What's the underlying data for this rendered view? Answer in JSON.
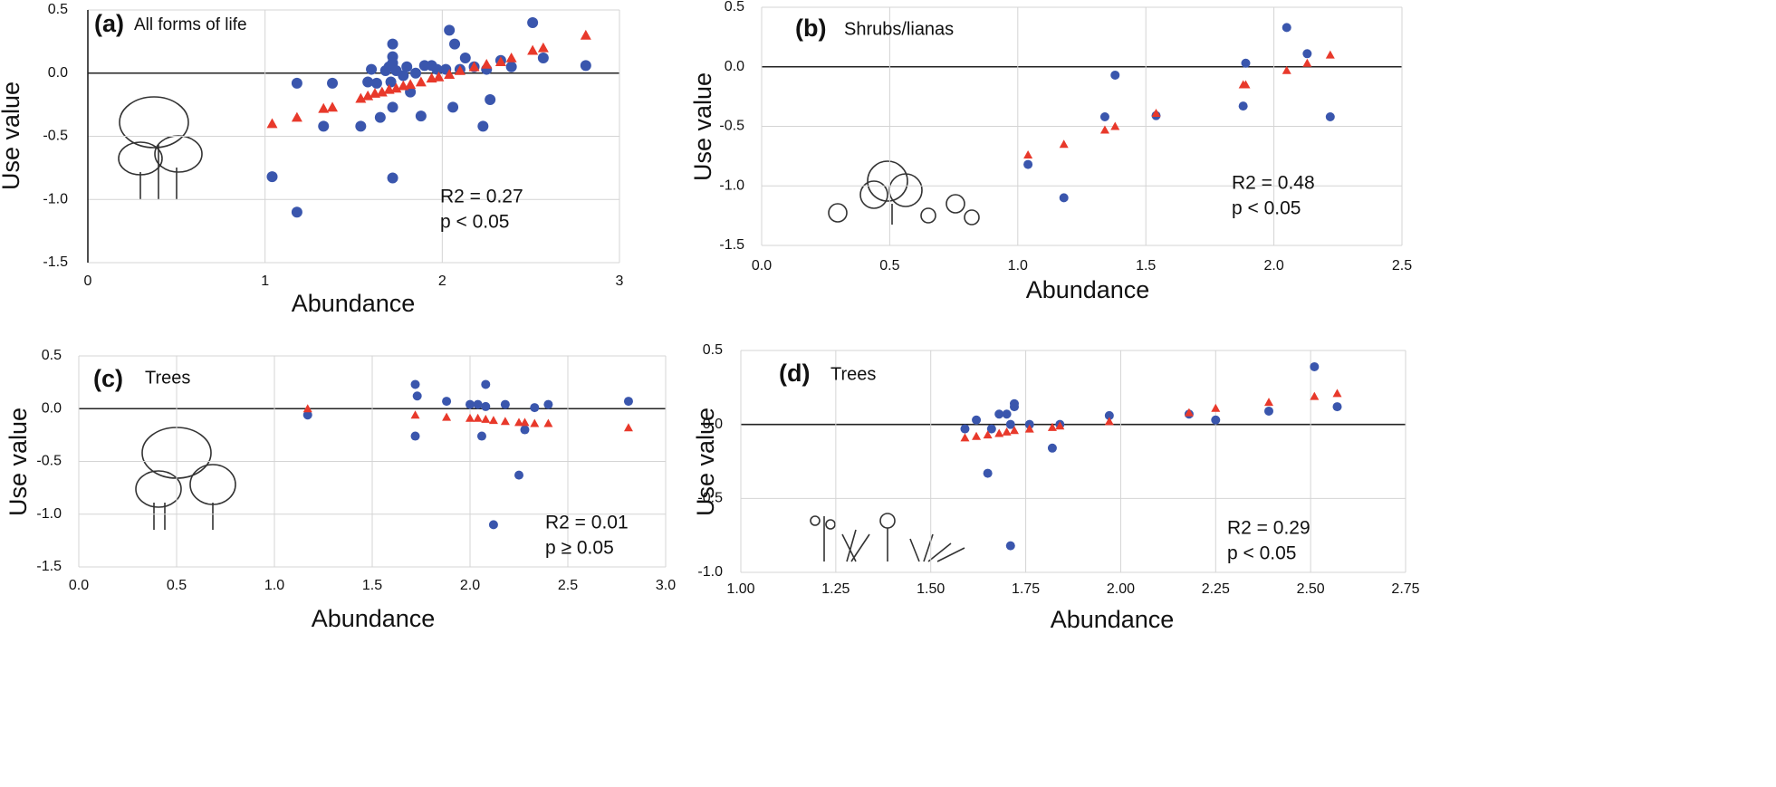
{
  "chart_data": [
    {
      "type": "scatter",
      "panel_label": "(a)",
      "title": "All forms of life",
      "xlabel": "Abundance",
      "ylabel": "Use value",
      "annotations": [
        "R2 =  0.27",
        "p <  0.05"
      ],
      "grid": true,
      "xlim": [
        0,
        3
      ],
      "ylim": [
        -1.5,
        0.5
      ],
      "xticks": [
        0,
        1,
        2,
        3
      ],
      "yticks": [
        {
          "value": 0.5,
          "label": "0.5"
        },
        {
          "value": 0,
          "label": "0.0"
        },
        {
          "value": -0.5,
          "label": "-0.5"
        },
        {
          "value": -1,
          "label": "-1.0"
        },
        {
          "value": -1.5,
          "label": "-1.5"
        }
      ],
      "series": [
        {
          "color": "#3a56ad",
          "marker": "circle",
          "x": [
            1.04,
            1.18,
            1.18,
            1.33,
            1.38,
            1.54,
            1.58,
            1.6,
            1.63,
            1.65,
            1.68,
            1.7,
            1.71,
            1.72,
            1.72,
            1.72,
            1.72,
            1.72,
            1.74,
            1.78,
            1.8,
            1.82,
            1.85,
            1.88,
            1.9,
            1.94,
            1.97,
            2.02,
            2.04,
            2.06,
            2.07,
            2.1,
            2.13,
            2.18,
            2.23,
            2.25,
            2.27,
            2.33,
            2.39,
            2.51,
            2.57,
            2.81
          ],
          "values": [
            -0.82,
            -0.08,
            -1.1,
            -0.42,
            -0.08,
            -0.42,
            -0.07,
            0.03,
            -0.08,
            -0.35,
            0.02,
            0.05,
            -0.07,
            0.13,
            0.23,
            0.08,
            -0.27,
            -0.83,
            0.02,
            -0.02,
            0.05,
            -0.15,
            0.0,
            -0.34,
            0.06,
            0.06,
            0.03,
            0.03,
            0.34,
            -0.27,
            0.23,
            0.03,
            0.12,
            0.05,
            -0.42,
            0.03,
            -0.21,
            0.1,
            0.05,
            0.4,
            0.12,
            0.06
          ]
        },
        {
          "color": "#e8392b",
          "marker": "triangle",
          "x": [
            1.04,
            1.18,
            1.33,
            1.38,
            1.54,
            1.58,
            1.62,
            1.66,
            1.7,
            1.74,
            1.78,
            1.82,
            1.88,
            1.94,
            1.98,
            2.04,
            2.1,
            2.18,
            2.25,
            2.33,
            2.39,
            2.51,
            2.57,
            2.81
          ],
          "values": [
            -0.4,
            -0.35,
            -0.28,
            -0.27,
            -0.2,
            -0.18,
            -0.16,
            -0.15,
            -0.13,
            -0.12,
            -0.1,
            -0.09,
            -0.07,
            -0.04,
            -0.03,
            -0.01,
            0.02,
            0.05,
            0.07,
            0.09,
            0.12,
            0.18,
            0.2,
            0.3
          ]
        }
      ]
    },
    {
      "type": "scatter",
      "panel_label": "(b)",
      "title": "Shrubs/lianas",
      "xlabel": "Abundance",
      "ylabel": "Use value",
      "annotations": [
        "R2 = 0.48",
        "p <  0.05"
      ],
      "grid": true,
      "xlim": [
        0,
        2.5
      ],
      "ylim": [
        -1.5,
        0.5
      ],
      "xticks": [
        {
          "value": 0,
          "label": "0.0"
        },
        {
          "value": 0.5,
          "label": "0.5"
        },
        {
          "value": 1,
          "label": "1.0"
        },
        {
          "value": 1.5,
          "label": "1.5"
        },
        {
          "value": 2,
          "label": "2.0"
        },
        {
          "value": 2.5,
          "label": "2.5"
        }
      ],
      "yticks": [
        {
          "value": 0.5,
          "label": "0.5"
        },
        {
          "value": 0,
          "label": "0.0"
        },
        {
          "value": -0.5,
          "label": "-0.5"
        },
        {
          "value": -1,
          "label": "-1.0"
        },
        {
          "value": -1.5,
          "label": "-1.5"
        }
      ],
      "series": [
        {
          "color": "#3a56ad",
          "marker": "circle",
          "x": [
            1.04,
            1.18,
            1.34,
            1.38,
            1.54,
            1.88,
            1.89,
            2.05,
            2.13,
            2.22
          ],
          "values": [
            -0.82,
            -1.1,
            -0.42,
            -0.07,
            -0.41,
            -0.33,
            0.03,
            0.33,
            0.11,
            -0.42
          ]
        },
        {
          "color": "#e8392b",
          "marker": "triangle",
          "x": [
            1.04,
            1.18,
            1.34,
            1.38,
            1.54,
            1.88,
            1.89,
            2.05,
            2.13,
            2.22
          ],
          "values": [
            -0.74,
            -0.65,
            -0.53,
            -0.5,
            -0.39,
            -0.15,
            -0.15,
            -0.03,
            0.03,
            0.1
          ]
        }
      ]
    },
    {
      "type": "scatter",
      "panel_label": "(c)",
      "title": "Trees",
      "xlabel": "Abundance",
      "ylabel": "Use value",
      "annotations": [
        "R2 = 0.01",
        "p ≥  0.05"
      ],
      "grid": true,
      "xlim": [
        0,
        3
      ],
      "ylim": [
        -1.5,
        0.5
      ],
      "xticks": [
        {
          "value": 0,
          "label": "0.0"
        },
        {
          "value": 0.5,
          "label": "0.5"
        },
        {
          "value": 1,
          "label": "1.0"
        },
        {
          "value": 1.5,
          "label": "1.5"
        },
        {
          "value": 2,
          "label": "2.0"
        },
        {
          "value": 2.5,
          "label": "2.5"
        },
        {
          "value": 3,
          "label": "3.0"
        }
      ],
      "yticks": [
        {
          "value": 0.5,
          "label": "0.5"
        },
        {
          "value": 0,
          "label": "0.0"
        },
        {
          "value": -0.5,
          "label": "-0.5"
        },
        {
          "value": -1,
          "label": "-1.0"
        },
        {
          "value": -1.5,
          "label": "-1.5"
        }
      ],
      "series": [
        {
          "color": "#3a56ad",
          "marker": "circle",
          "x": [
            1.17,
            1.72,
            1.73,
            1.72,
            1.88,
            2.0,
            2.04,
            2.06,
            2.08,
            2.08,
            2.12,
            2.18,
            2.25,
            2.28,
            2.33,
            2.4,
            2.81
          ],
          "values": [
            -0.06,
            0.23,
            0.12,
            -0.26,
            0.07,
            0.04,
            0.04,
            -0.26,
            0.23,
            0.02,
            -1.1,
            0.04,
            -0.63,
            -0.2,
            0.01,
            0.04,
            0.07
          ]
        },
        {
          "color": "#e8392b",
          "marker": "triangle",
          "x": [
            1.17,
            1.72,
            1.88,
            2.0,
            2.04,
            2.08,
            2.12,
            2.18,
            2.25,
            2.28,
            2.33,
            2.4,
            2.81
          ],
          "values": [
            0.0,
            -0.06,
            -0.08,
            -0.09,
            -0.09,
            -0.1,
            -0.11,
            -0.12,
            -0.13,
            -0.13,
            -0.14,
            -0.14,
            -0.18
          ]
        }
      ]
    },
    {
      "type": "scatter",
      "panel_label": "(d)",
      "title": "Trees",
      "xlabel": "Abundance",
      "ylabel": "Use value",
      "annotations": [
        "R2 = 0.29",
        "p <  0.05"
      ],
      "grid": true,
      "xlim": [
        1,
        2.75
      ],
      "ylim": [
        -1,
        0.5
      ],
      "xticks": [
        {
          "value": 1,
          "label": "1.00"
        },
        {
          "value": 1.25,
          "label": "1.25"
        },
        {
          "value": 1.5,
          "label": "1.50"
        },
        {
          "value": 1.75,
          "label": "1.75"
        },
        {
          "value": 2,
          "label": "2.00"
        },
        {
          "value": 2.25,
          "label": "2.25"
        },
        {
          "value": 2.5,
          "label": "2.50"
        },
        {
          "value": 2.75,
          "label": "2.75"
        }
      ],
      "yticks": [
        {
          "value": 0.5,
          "label": "0.5"
        },
        {
          "value": 0,
          "label": "0.0"
        },
        {
          "value": -0.5,
          "label": "-0.5"
        },
        {
          "value": -1,
          "label": "-1.0"
        }
      ],
      "series": [
        {
          "color": "#3a56ad",
          "marker": "circle",
          "x": [
            1.59,
            1.62,
            1.65,
            1.66,
            1.68,
            1.7,
            1.71,
            1.71,
            1.72,
            1.72,
            1.76,
            1.82,
            1.84,
            1.97,
            2.18,
            2.25,
            2.39,
            2.51,
            2.57
          ],
          "values": [
            -0.03,
            0.03,
            -0.33,
            -0.03,
            0.07,
            0.07,
            0.0,
            -0.82,
            0.12,
            0.14,
            0.0,
            -0.16,
            0.0,
            0.06,
            0.07,
            0.03,
            0.09,
            0.39,
            0.12
          ]
        },
        {
          "color": "#e8392b",
          "marker": "triangle",
          "x": [
            1.59,
            1.62,
            1.65,
            1.68,
            1.7,
            1.72,
            1.76,
            1.82,
            1.84,
            1.97,
            2.18,
            2.25,
            2.39,
            2.51,
            2.57
          ],
          "values": [
            -0.09,
            -0.08,
            -0.07,
            -0.06,
            -0.05,
            -0.04,
            -0.03,
            -0.02,
            -0.01,
            0.02,
            0.08,
            0.11,
            0.15,
            0.19,
            0.21
          ]
        }
      ]
    }
  ]
}
